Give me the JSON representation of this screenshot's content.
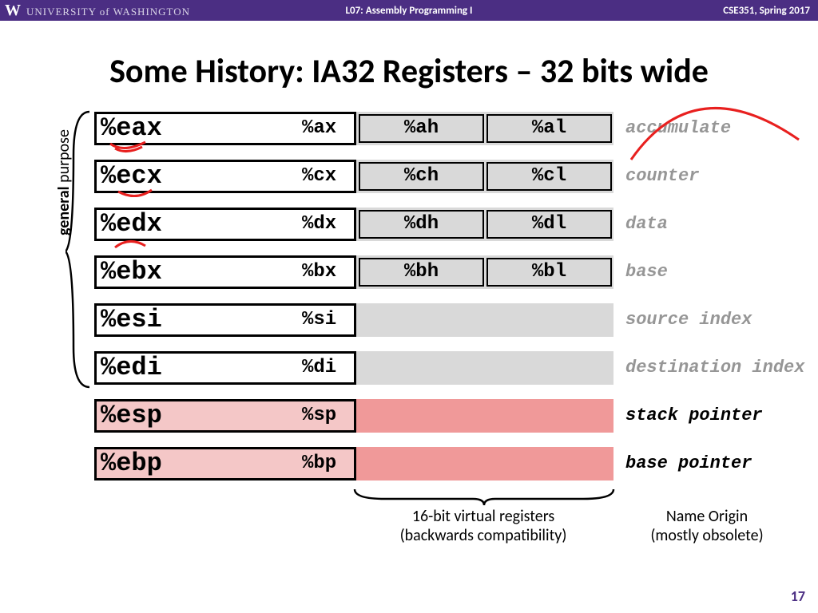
{
  "header": {
    "university": "UNIVERSITY of WASHINGTON",
    "center": "L07: Assembly Programming I",
    "right": "CSE351, Spring 2017"
  },
  "title": "Some History: IA32 Registers – 32 bits wide",
  "sidelabel_bold": "general",
  "sidelabel_rest": " purpose",
  "registers": [
    {
      "e": "%eax",
      "x": "%ax",
      "h": "%ah",
      "l": "%al",
      "name": "accumulate",
      "split": true,
      "pink": false,
      "grey": true
    },
    {
      "e": "%ecx",
      "x": "%cx",
      "h": "%ch",
      "l": "%cl",
      "name": "counter",
      "split": true,
      "pink": false,
      "grey": true
    },
    {
      "e": "%edx",
      "x": "%dx",
      "h": "%dh",
      "l": "%dl",
      "name": "data",
      "split": true,
      "pink": false,
      "grey": true
    },
    {
      "e": "%ebx",
      "x": "%bx",
      "h": "%bh",
      "l": "%bl",
      "name": "base",
      "split": true,
      "pink": false,
      "grey": true
    },
    {
      "e": "%esi",
      "x": "%si",
      "h": "",
      "l": "",
      "name": "source index",
      "split": false,
      "pink": false,
      "grey": true
    },
    {
      "e": "%edi",
      "x": "%di",
      "h": "",
      "l": "",
      "name": "destination index",
      "split": false,
      "pink": false,
      "grey": true
    },
    {
      "e": "%esp",
      "x": "%sp",
      "h": "",
      "l": "",
      "name": "stack pointer",
      "split": false,
      "pink": true,
      "grey": false
    },
    {
      "e": "%ebp",
      "x": "%bp",
      "h": "",
      "l": "",
      "name": "base pointer",
      "split": false,
      "pink": true,
      "grey": false
    }
  ],
  "bottom1_l1": "16-bit virtual registers",
  "bottom1_l2": "(backwards compatibility)",
  "bottom2_l1": "Name Origin",
  "bottom2_l2": "(mostly obsolete)",
  "pagenum": "17",
  "colors": {
    "purple": "#4b2e83",
    "grey_fill": "#d9d9d9",
    "pink_light": "#f4c7c7",
    "pink_dark": "#f09999",
    "grey_text": "#969696",
    "red_ink": "#e8201f"
  }
}
